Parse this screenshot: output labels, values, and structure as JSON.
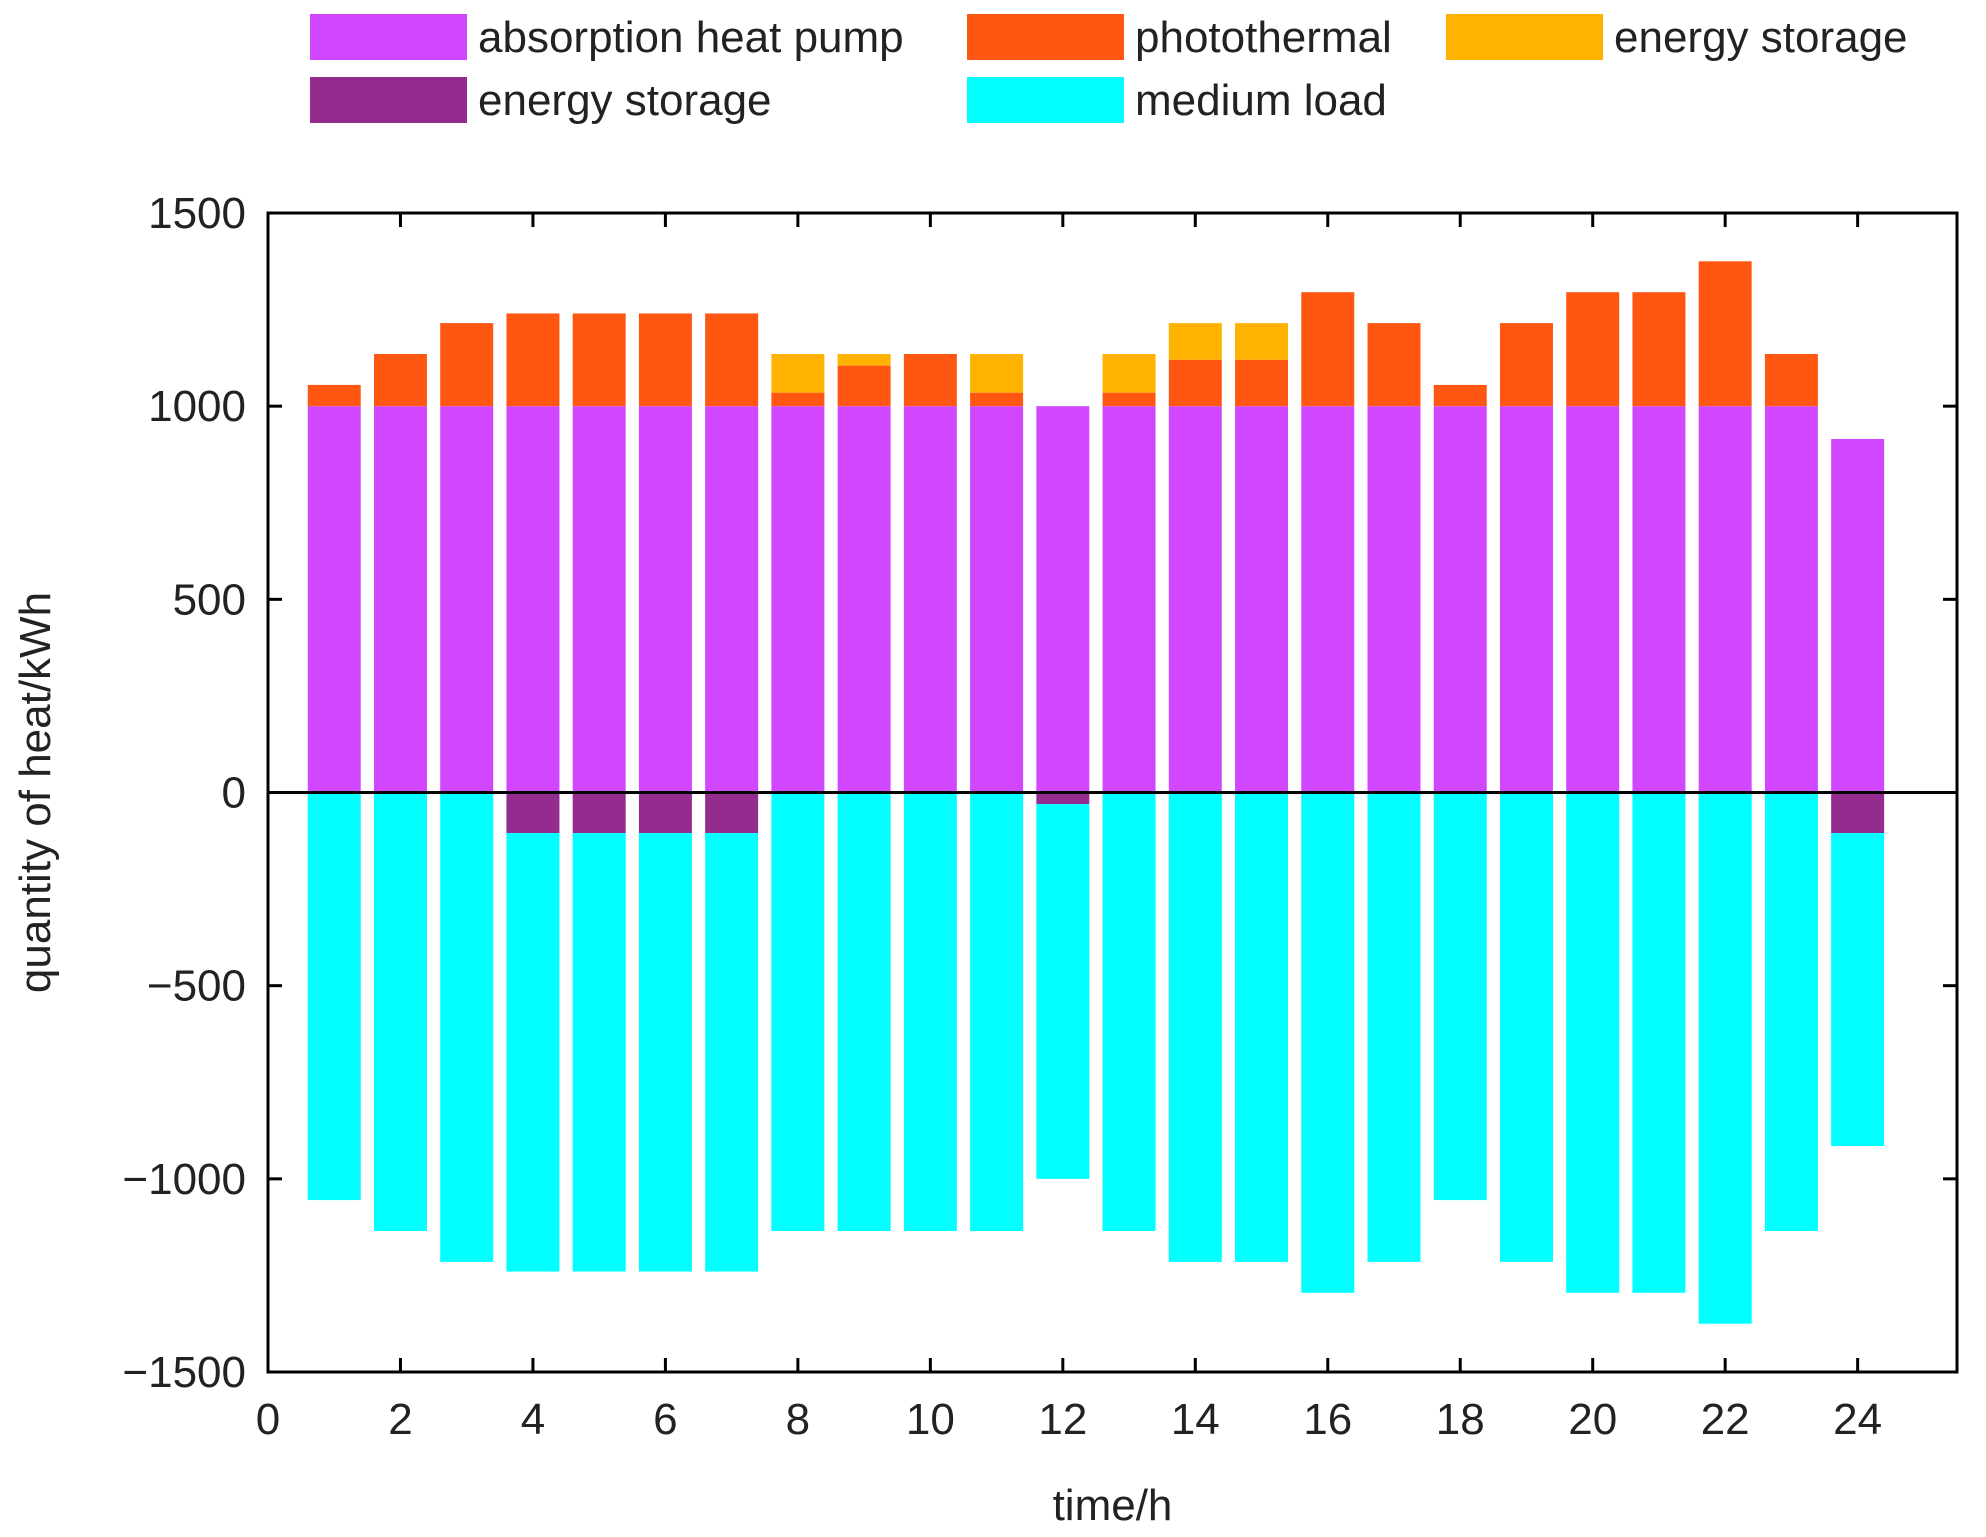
{
  "chart_data": {
    "type": "bar",
    "stacked": true,
    "xlabel": "time/h",
    "ylabel": "quantity of heat/kWh",
    "xlim": [
      0,
      25.5
    ],
    "ylim": [
      -1500,
      1500
    ],
    "xticks": [
      0,
      2,
      4,
      6,
      8,
      10,
      12,
      14,
      16,
      18,
      20,
      22,
      24
    ],
    "xtick_labels": [
      "0",
      "2",
      "4",
      "6",
      "8",
      "10",
      "12",
      "14",
      "16",
      "18",
      "20",
      "22",
      "24"
    ],
    "yticks": [
      -1500,
      -1000,
      -500,
      0,
      500,
      1000,
      1500
    ],
    "ytick_labels": [
      "−1500",
      "−1000",
      "−500",
      "0",
      "500",
      "1000",
      "1500"
    ],
    "grid": false,
    "legend_position": "top",
    "x": [
      1,
      2,
      3,
      4,
      5,
      6,
      7,
      8,
      9,
      10,
      11,
      12,
      13,
      14,
      15,
      16,
      17,
      18,
      19,
      20,
      21,
      22,
      23,
      24
    ],
    "series": [
      {
        "name": "absorption heat pump",
        "color": "#d147ff",
        "values": [
          1000,
          1000,
          1000,
          1000,
          1000,
          1000,
          1000,
          1000,
          1000,
          1000,
          1000,
          1000,
          1000,
          1000,
          1000,
          1000,
          1000,
          1000,
          1000,
          1000,
          1000,
          1000,
          1000,
          915
        ]
      },
      {
        "name": "photothermal",
        "color": "#ff5711",
        "values": [
          55,
          135,
          215,
          240,
          240,
          240,
          240,
          35,
          105,
          135,
          35,
          0,
          35,
          120,
          120,
          295,
          215,
          55,
          215,
          295,
          295,
          375,
          135,
          0
        ]
      },
      {
        "name": "energy storage",
        "color": "#ffb200",
        "values": [
          0,
          0,
          0,
          0,
          0,
          0,
          0,
          100,
          30,
          0,
          100,
          0,
          100,
          95,
          95,
          0,
          0,
          0,
          0,
          0,
          0,
          0,
          0,
          0
        ]
      },
      {
        "name": "energy storage",
        "color": "#942b8e",
        "values": [
          0,
          0,
          0,
          -105,
          -105,
          -105,
          -105,
          0,
          0,
          0,
          0,
          -30,
          0,
          0,
          0,
          0,
          0,
          0,
          0,
          0,
          0,
          0,
          0,
          -105
        ]
      },
      {
        "name": "medium load",
        "color": "#00ffff",
        "values": [
          -1055,
          -1135,
          -1215,
          -1135,
          -1135,
          -1135,
          -1135,
          -1135,
          -1135,
          -1135,
          -1135,
          -970,
          -1135,
          -1215,
          -1215,
          -1295,
          -1215,
          -1055,
          -1215,
          -1295,
          -1295,
          -1375,
          -1135,
          -810
        ]
      }
    ]
  }
}
